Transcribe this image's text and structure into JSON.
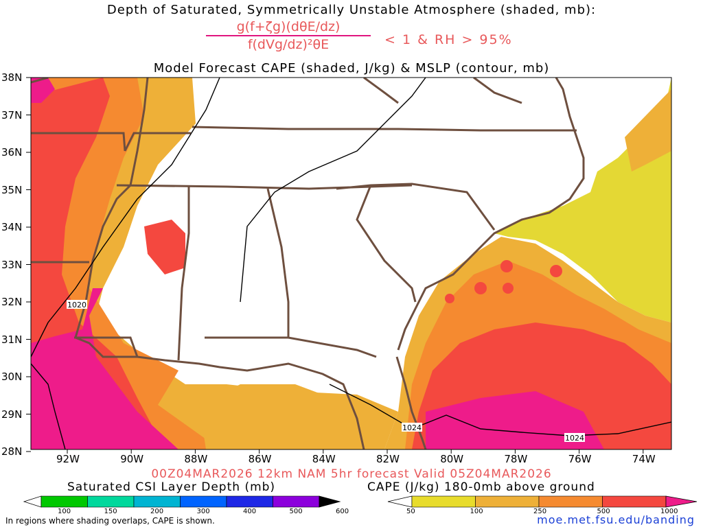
{
  "header": {
    "line1": "Depth of Saturated, Symmetrically Unstable Atmosphere (shaded, mb):",
    "frac_numerator": "g(f+ζg)(dθE/dz)",
    "frac_denominator": "f(dVg/dz)²θE",
    "criteria": "< 1 & RH > 95%",
    "line3": "Model Forecast CAPE (shaded, J/kg) & MSLP (contour, mb)"
  },
  "axes": {
    "lat_labels": [
      "38N",
      "37N",
      "36N",
      "35N",
      "34N",
      "33N",
      "32N",
      "31N",
      "30N",
      "29N",
      "28N"
    ],
    "lon_labels": [
      "92W",
      "90W",
      "88W",
      "86W",
      "84W",
      "82W",
      "80W",
      "78W",
      "76W",
      "74W"
    ]
  },
  "contours": {
    "label_1020": "1020",
    "label_1024a": "1024",
    "label_1024b": "1024"
  },
  "forecast_line": "00Z04MAR2026 12km NAM 5hr forecast Valid 05Z04MAR2026",
  "csi_colorbar": {
    "title": "Saturated CSI Layer Depth (mb)",
    "ticks": [
      "100",
      "150",
      "200",
      "300",
      "400",
      "500",
      "600"
    ],
    "colors": [
      "#ffffff",
      "#00c800",
      "#00d89c",
      "#00b4d2",
      "#0064ff",
      "#1e28e6",
      "#8c00dc",
      "#000000"
    ]
  },
  "cape_colorbar": {
    "title": "CAPE (J/kg) 180-0mb above ground",
    "ticks": [
      "50",
      "100",
      "250",
      "500",
      "1000"
    ],
    "colors": [
      "#ffffff",
      "#e8dc2c",
      "#eeb038",
      "#f58a30",
      "#f4483f",
      "#f0148c"
    ]
  },
  "footnote": "In regions where shading overlaps, CAPE is shown.",
  "url": "moe.met.fsu.edu/banding",
  "map_colors": {
    "cape_magenta": "#ee1c8a",
    "cape_red": "#f4483f",
    "cape_orange": "#f58a30",
    "cape_lightorange": "#eeb038",
    "cape_yellow": "#e4d834",
    "border": "#6e4f3f",
    "isobar": "#000000"
  }
}
